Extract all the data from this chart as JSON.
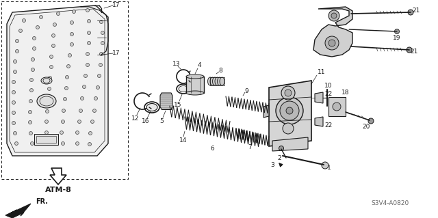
{
  "bg_color": "#ffffff",
  "diagram_code": "S3V4-A0820",
  "atm_label": "ATM-8",
  "fig_width": 6.4,
  "fig_height": 3.19,
  "dpi": 100,
  "dark": "#1a1a1a",
  "gray": "#666666",
  "light_gray": "#cccccc",
  "mid_gray": "#999999"
}
